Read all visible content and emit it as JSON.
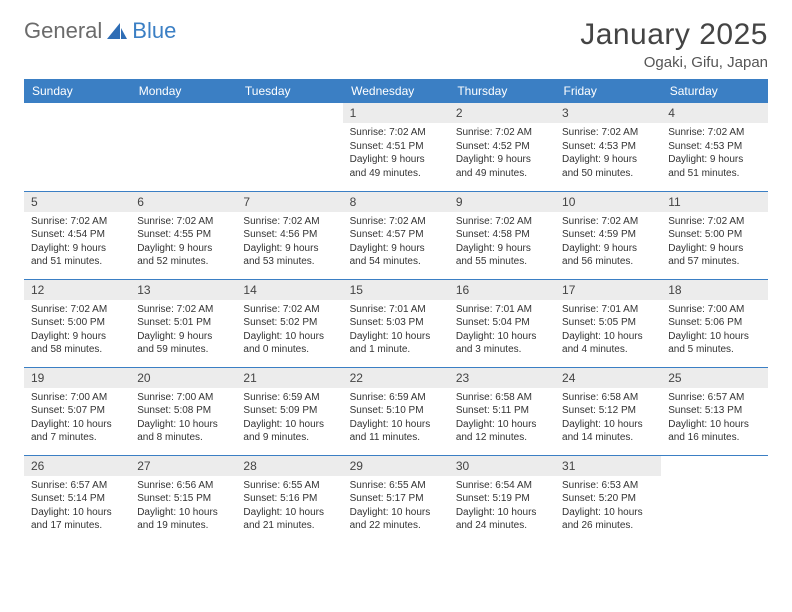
{
  "brand": {
    "part1": "General",
    "part2": "Blue"
  },
  "title": "January 2025",
  "location": "Ogaki, Gifu, Japan",
  "colors": {
    "header_bg": "#3b7fc4",
    "header_text": "#ffffff",
    "daynum_bg": "#ececec",
    "row_border": "#3b7fc4",
    "title_color": "#444444",
    "text_color": "#333333"
  },
  "weekdays": [
    "Sunday",
    "Monday",
    "Tuesday",
    "Wednesday",
    "Thursday",
    "Friday",
    "Saturday"
  ],
  "weeks": [
    [
      {
        "empty": true
      },
      {
        "empty": true
      },
      {
        "empty": true
      },
      {
        "day": "1",
        "sunrise": "Sunrise: 7:02 AM",
        "sunset": "Sunset: 4:51 PM",
        "daylight1": "Daylight: 9 hours",
        "daylight2": "and 49 minutes."
      },
      {
        "day": "2",
        "sunrise": "Sunrise: 7:02 AM",
        "sunset": "Sunset: 4:52 PM",
        "daylight1": "Daylight: 9 hours",
        "daylight2": "and 49 minutes."
      },
      {
        "day": "3",
        "sunrise": "Sunrise: 7:02 AM",
        "sunset": "Sunset: 4:53 PM",
        "daylight1": "Daylight: 9 hours",
        "daylight2": "and 50 minutes."
      },
      {
        "day": "4",
        "sunrise": "Sunrise: 7:02 AM",
        "sunset": "Sunset: 4:53 PM",
        "daylight1": "Daylight: 9 hours",
        "daylight2": "and 51 minutes."
      }
    ],
    [
      {
        "day": "5",
        "sunrise": "Sunrise: 7:02 AM",
        "sunset": "Sunset: 4:54 PM",
        "daylight1": "Daylight: 9 hours",
        "daylight2": "and 51 minutes."
      },
      {
        "day": "6",
        "sunrise": "Sunrise: 7:02 AM",
        "sunset": "Sunset: 4:55 PM",
        "daylight1": "Daylight: 9 hours",
        "daylight2": "and 52 minutes."
      },
      {
        "day": "7",
        "sunrise": "Sunrise: 7:02 AM",
        "sunset": "Sunset: 4:56 PM",
        "daylight1": "Daylight: 9 hours",
        "daylight2": "and 53 minutes."
      },
      {
        "day": "8",
        "sunrise": "Sunrise: 7:02 AM",
        "sunset": "Sunset: 4:57 PM",
        "daylight1": "Daylight: 9 hours",
        "daylight2": "and 54 minutes."
      },
      {
        "day": "9",
        "sunrise": "Sunrise: 7:02 AM",
        "sunset": "Sunset: 4:58 PM",
        "daylight1": "Daylight: 9 hours",
        "daylight2": "and 55 minutes."
      },
      {
        "day": "10",
        "sunrise": "Sunrise: 7:02 AM",
        "sunset": "Sunset: 4:59 PM",
        "daylight1": "Daylight: 9 hours",
        "daylight2": "and 56 minutes."
      },
      {
        "day": "11",
        "sunrise": "Sunrise: 7:02 AM",
        "sunset": "Sunset: 5:00 PM",
        "daylight1": "Daylight: 9 hours",
        "daylight2": "and 57 minutes."
      }
    ],
    [
      {
        "day": "12",
        "sunrise": "Sunrise: 7:02 AM",
        "sunset": "Sunset: 5:00 PM",
        "daylight1": "Daylight: 9 hours",
        "daylight2": "and 58 minutes."
      },
      {
        "day": "13",
        "sunrise": "Sunrise: 7:02 AM",
        "sunset": "Sunset: 5:01 PM",
        "daylight1": "Daylight: 9 hours",
        "daylight2": "and 59 minutes."
      },
      {
        "day": "14",
        "sunrise": "Sunrise: 7:02 AM",
        "sunset": "Sunset: 5:02 PM",
        "daylight1": "Daylight: 10 hours",
        "daylight2": "and 0 minutes."
      },
      {
        "day": "15",
        "sunrise": "Sunrise: 7:01 AM",
        "sunset": "Sunset: 5:03 PM",
        "daylight1": "Daylight: 10 hours",
        "daylight2": "and 1 minute."
      },
      {
        "day": "16",
        "sunrise": "Sunrise: 7:01 AM",
        "sunset": "Sunset: 5:04 PM",
        "daylight1": "Daylight: 10 hours",
        "daylight2": "and 3 minutes."
      },
      {
        "day": "17",
        "sunrise": "Sunrise: 7:01 AM",
        "sunset": "Sunset: 5:05 PM",
        "daylight1": "Daylight: 10 hours",
        "daylight2": "and 4 minutes."
      },
      {
        "day": "18",
        "sunrise": "Sunrise: 7:00 AM",
        "sunset": "Sunset: 5:06 PM",
        "daylight1": "Daylight: 10 hours",
        "daylight2": "and 5 minutes."
      }
    ],
    [
      {
        "day": "19",
        "sunrise": "Sunrise: 7:00 AM",
        "sunset": "Sunset: 5:07 PM",
        "daylight1": "Daylight: 10 hours",
        "daylight2": "and 7 minutes."
      },
      {
        "day": "20",
        "sunrise": "Sunrise: 7:00 AM",
        "sunset": "Sunset: 5:08 PM",
        "daylight1": "Daylight: 10 hours",
        "daylight2": "and 8 minutes."
      },
      {
        "day": "21",
        "sunrise": "Sunrise: 6:59 AM",
        "sunset": "Sunset: 5:09 PM",
        "daylight1": "Daylight: 10 hours",
        "daylight2": "and 9 minutes."
      },
      {
        "day": "22",
        "sunrise": "Sunrise: 6:59 AM",
        "sunset": "Sunset: 5:10 PM",
        "daylight1": "Daylight: 10 hours",
        "daylight2": "and 11 minutes."
      },
      {
        "day": "23",
        "sunrise": "Sunrise: 6:58 AM",
        "sunset": "Sunset: 5:11 PM",
        "daylight1": "Daylight: 10 hours",
        "daylight2": "and 12 minutes."
      },
      {
        "day": "24",
        "sunrise": "Sunrise: 6:58 AM",
        "sunset": "Sunset: 5:12 PM",
        "daylight1": "Daylight: 10 hours",
        "daylight2": "and 14 minutes."
      },
      {
        "day": "25",
        "sunrise": "Sunrise: 6:57 AM",
        "sunset": "Sunset: 5:13 PM",
        "daylight1": "Daylight: 10 hours",
        "daylight2": "and 16 minutes."
      }
    ],
    [
      {
        "day": "26",
        "sunrise": "Sunrise: 6:57 AM",
        "sunset": "Sunset: 5:14 PM",
        "daylight1": "Daylight: 10 hours",
        "daylight2": "and 17 minutes."
      },
      {
        "day": "27",
        "sunrise": "Sunrise: 6:56 AM",
        "sunset": "Sunset: 5:15 PM",
        "daylight1": "Daylight: 10 hours",
        "daylight2": "and 19 minutes."
      },
      {
        "day": "28",
        "sunrise": "Sunrise: 6:55 AM",
        "sunset": "Sunset: 5:16 PM",
        "daylight1": "Daylight: 10 hours",
        "daylight2": "and 21 minutes."
      },
      {
        "day": "29",
        "sunrise": "Sunrise: 6:55 AM",
        "sunset": "Sunset: 5:17 PM",
        "daylight1": "Daylight: 10 hours",
        "daylight2": "and 22 minutes."
      },
      {
        "day": "30",
        "sunrise": "Sunrise: 6:54 AM",
        "sunset": "Sunset: 5:19 PM",
        "daylight1": "Daylight: 10 hours",
        "daylight2": "and 24 minutes."
      },
      {
        "day": "31",
        "sunrise": "Sunrise: 6:53 AM",
        "sunset": "Sunset: 5:20 PM",
        "daylight1": "Daylight: 10 hours",
        "daylight2": "and 26 minutes."
      },
      {
        "empty": true
      }
    ]
  ]
}
